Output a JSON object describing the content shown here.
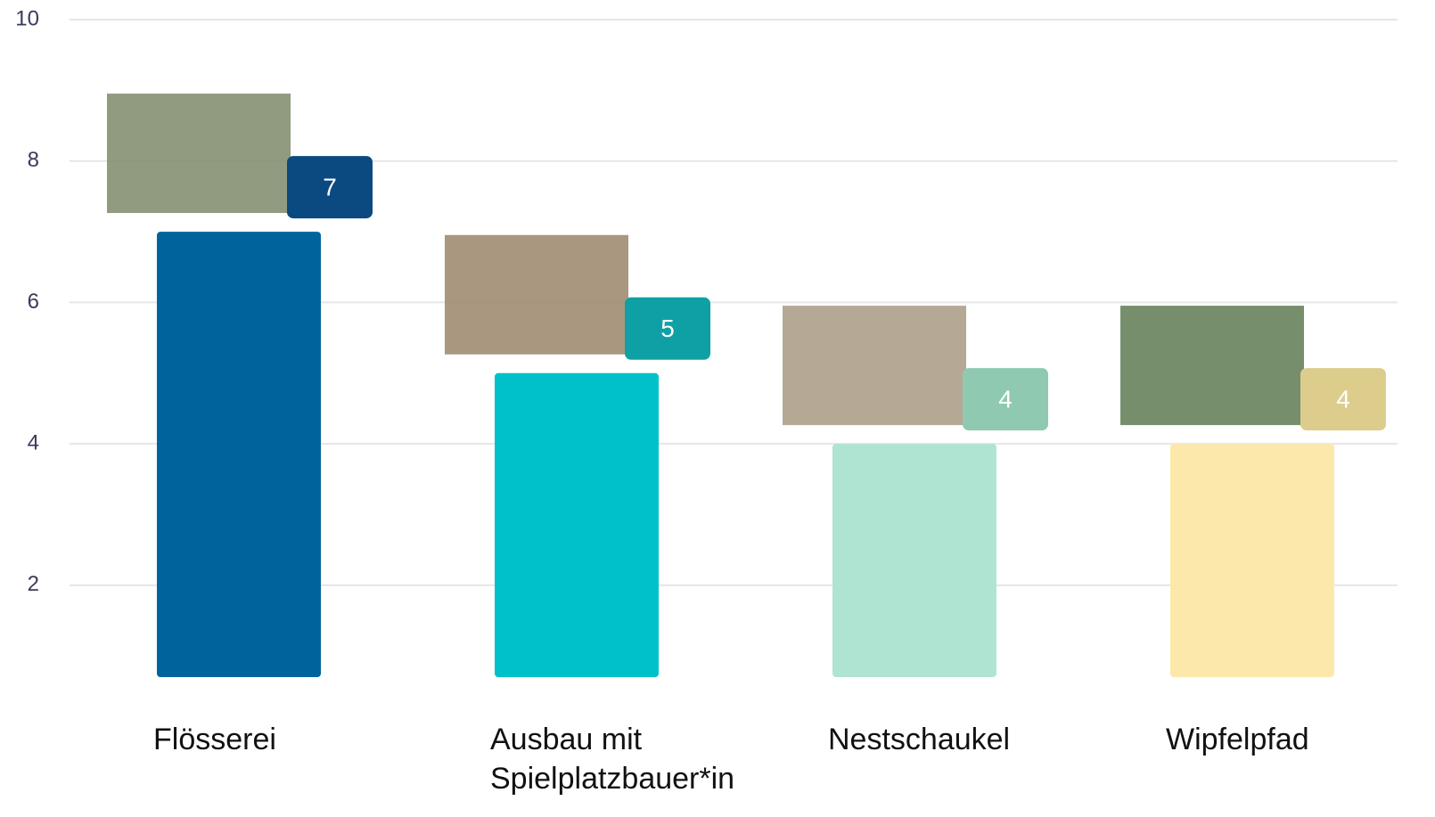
{
  "chart_data": {
    "type": "bar",
    "categories": [
      "Flösserei",
      "Ausbau mit Spielplatzbauer*in",
      "Nestschaukel",
      "Wipfelpfad"
    ],
    "values": [
      7,
      5,
      4,
      4
    ],
    "colors": [
      "#00639c",
      "#00c1c9",
      "#b0e4d2",
      "#fde8ab"
    ],
    "label_colors": [
      "#0a4a80",
      "#0ea0a4",
      "#8fc9b2",
      "#dccd8c"
    ],
    "ylim": [
      0.7,
      10
    ],
    "yticks": [
      2,
      4,
      6,
      8,
      10
    ],
    "grid": true
  }
}
